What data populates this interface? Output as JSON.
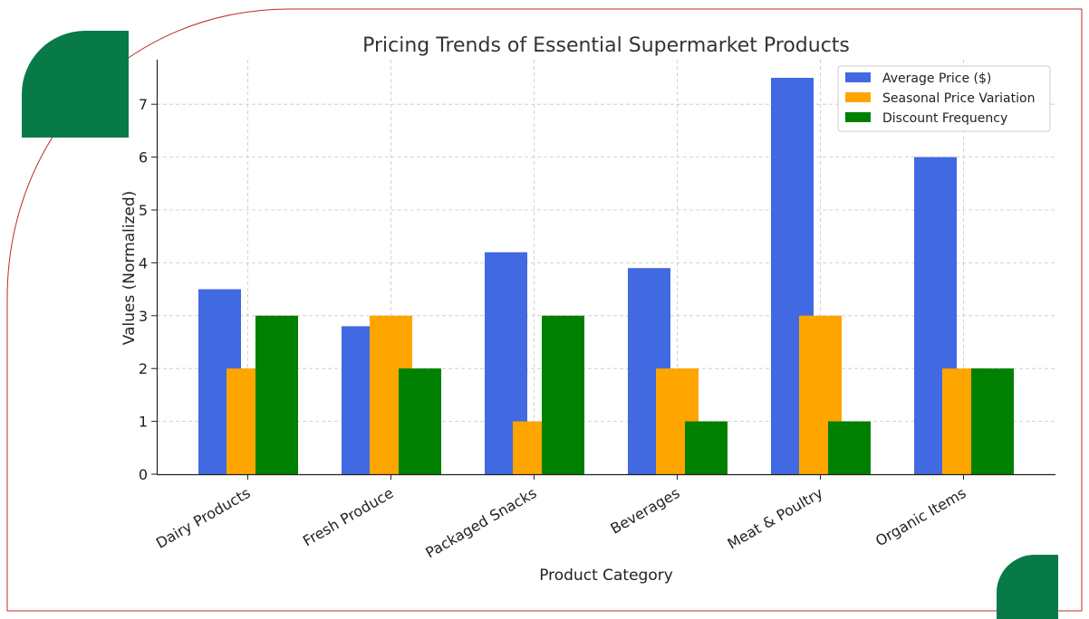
{
  "chart_data": {
    "type": "bar",
    "title": "Pricing Trends of Essential Supermarket Products",
    "xlabel": "Product Category",
    "ylabel": "Values (Normalized)",
    "categories": [
      "Dairy Products",
      "Fresh Produce",
      "Packaged Snacks",
      "Beverages",
      "Meat & Poultry",
      "Organic Items"
    ],
    "series": [
      {
        "name": "Average Price ($)",
        "color": "#4169e1",
        "values": [
          3.5,
          2.8,
          4.2,
          3.9,
          7.5,
          6.0
        ]
      },
      {
        "name": "Seasonal Price Variation",
        "color": "#ffa500",
        "values": [
          2,
          3,
          1,
          2,
          3,
          2
        ]
      },
      {
        "name": "Discount Frequency",
        "color": "#008000",
        "values": [
          3,
          2,
          3,
          1,
          1,
          2
        ]
      }
    ],
    "yticks": [
      0,
      1,
      2,
      3,
      4,
      5,
      6,
      7
    ],
    "ylim": [
      0,
      7.85
    ],
    "grid": true,
    "legend": "top-right"
  },
  "decor": {
    "accent": "#077a47",
    "border": "#c0282d"
  }
}
